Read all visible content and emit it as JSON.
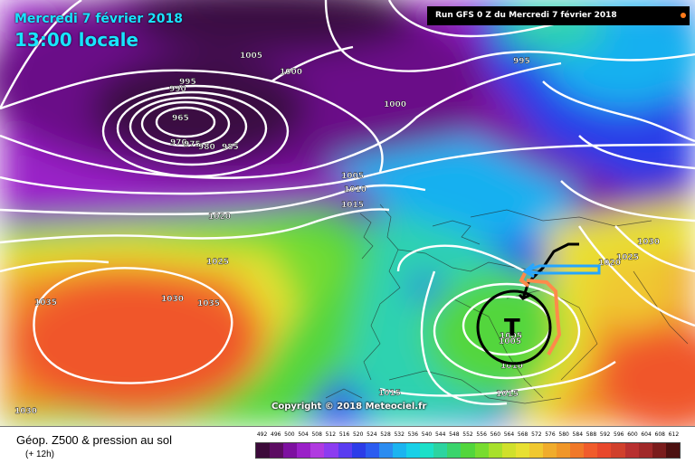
{
  "title": {
    "date": "Mercredi 7 février 2018",
    "time": "13:00 locale"
  },
  "run_info": "Run GFS 0 Z du Mercredi 7 février 2018",
  "copyright": "Copyright © 2018 Meteociel.fr",
  "footer": {
    "title": "Géop. Z500 & pression au sol",
    "subtitle": "(+ 12h)"
  },
  "colors": {
    "low_core": "#3a0742",
    "deep_purple": "#7d10a0",
    "violet": "#a020d8",
    "blue": "#2a3ce8",
    "sky": "#18b0f0",
    "teal": "#2fd2b0",
    "green": "#52d63c",
    "yellow": "#e8e032",
    "orange": "#f09a28",
    "red": "#f0562c",
    "isobar": "#ffffff",
    "arrow_blue": "#26a6ff",
    "arrow_orange": "#ff8a4a",
    "annotation_black": "#000000",
    "run_dot": "#ff7a1a"
  },
  "isobar_labels": [
    {
      "text": "1005"
    },
    {
      "text": "1000"
    },
    {
      "text": "995"
    },
    {
      "text": "990"
    },
    {
      "text": "965"
    },
    {
      "text": "970"
    },
    {
      "text": "975"
    },
    {
      "text": "980"
    },
    {
      "text": "985"
    },
    {
      "text": "995"
    },
    {
      "text": "1000"
    },
    {
      "text": "1005"
    },
    {
      "text": "1010"
    },
    {
      "text": "1015"
    },
    {
      "text": "1020"
    },
    {
      "text": "1025"
    },
    {
      "text": "1030"
    },
    {
      "text": "1035"
    },
    {
      "text": "1035"
    },
    {
      "text": "1030"
    },
    {
      "text": "1030"
    },
    {
      "text": "1025"
    },
    {
      "text": "1020"
    },
    {
      "text": "1005"
    },
    {
      "text": "1010"
    },
    {
      "text": "1015"
    },
    {
      "text": "1015"
    }
  ],
  "annotation": {
    "symbol": "T",
    "value": "1005"
  },
  "scale": {
    "labels": [
      "492",
      "496",
      "500",
      "504",
      "508",
      "512",
      "516",
      "520",
      "524",
      "528",
      "532",
      "536",
      "540",
      "544",
      "548",
      "552",
      "556",
      "560",
      "564",
      "568",
      "572",
      "576",
      "580",
      "584",
      "588",
      "592",
      "596",
      "600",
      "604",
      "608",
      "612"
    ],
    "colors": [
      "#3c0a3a",
      "#5c0c62",
      "#7d10a0",
      "#9a20c8",
      "#b03ae0",
      "#8c3cf0",
      "#5a3cf0",
      "#2c3ce8",
      "#2c5cf0",
      "#2c8cf0",
      "#1cb4f0",
      "#18d0e8",
      "#1ce0c8",
      "#2cd4a0",
      "#3ad46c",
      "#52d63c",
      "#78dc30",
      "#a8e02c",
      "#d0e02c",
      "#e8e032",
      "#f0c830",
      "#f0ac2c",
      "#f09628",
      "#f07828",
      "#f05c2c",
      "#e8482c",
      "#d0402c",
      "#b83030",
      "#a02828",
      "#7a1c1c",
      "#4c1010"
    ]
  }
}
